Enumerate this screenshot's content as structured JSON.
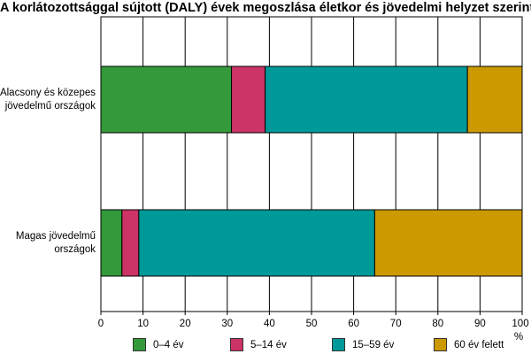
{
  "chart_data": {
    "type": "bar",
    "orientation": "horizontal",
    "stacked": true,
    "title": "A korlátozottsággal sújtott (DALY) évek megoszlása életkor és jövedelmi helyzet szerint",
    "categories": [
      "Alacsony és közepes jövedelmű országok",
      "Magas jövedelmű országok"
    ],
    "series": [
      {
        "name": "0–4 év",
        "color": "#33993a",
        "values": [
          31,
          5
        ]
      },
      {
        "name": "5–14 év",
        "color": "#cc3366",
        "values": [
          8,
          4
        ]
      },
      {
        "name": "15–59 év",
        "color": "#009999",
        "values": [
          48,
          56
        ]
      },
      {
        "name": "60 év felett",
        "color": "#cc9900",
        "values": [
          13,
          35
        ]
      }
    ],
    "xlim": [
      0,
      100
    ],
    "xticks": [
      0,
      10,
      20,
      30,
      40,
      50,
      60,
      70,
      80,
      90,
      100
    ],
    "xunit": "%",
    "grid": true,
    "legend_position": "bottom"
  }
}
